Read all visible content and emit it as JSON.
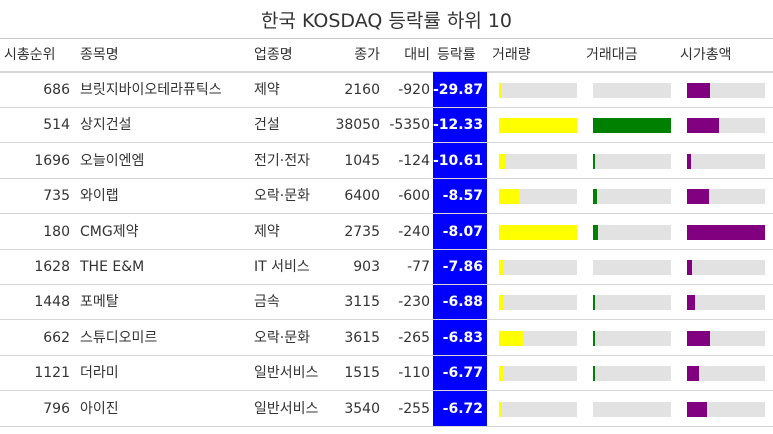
{
  "title": "한국 KOSDAQ 등락률 하위 10",
  "headers": {
    "rank": "시총순위",
    "name": "종목명",
    "sector": "업종명",
    "close": "종가",
    "change": "대비",
    "rate": "등락률",
    "volume": "거래량",
    "trade_value": "거래대금",
    "market_cap": "시가총액"
  },
  "colors": {
    "rate_bg": "#0000ff",
    "volume": "#ffff00",
    "trade_value": "#008000",
    "market_cap": "#800080",
    "track": "#e2e2e2"
  },
  "chart_data": {
    "type": "table",
    "columns": [
      "시총순위",
      "종목명",
      "업종명",
      "종가",
      "대비",
      "등락률",
      "거래량",
      "거래대금",
      "시가총액"
    ],
    "rows": [
      {
        "rank": "686",
        "name": "브릿지바이오테라퓨틱스",
        "sector": "제약",
        "close": "2160",
        "change": "-920",
        "rate": "-29.87",
        "volume": 0.03,
        "trade_value": 0.0,
        "market_cap": 0.29
      },
      {
        "rank": "514",
        "name": "상지건설",
        "sector": "건설",
        "close": "38050",
        "change": "-5350",
        "rate": "-12.33",
        "volume": 1.0,
        "trade_value": 1.0,
        "market_cap": 0.41
      },
      {
        "rank": "1696",
        "name": "오늘이엔엠",
        "sector": "전기·전자",
        "close": "1045",
        "change": "-124",
        "rate": "-10.61",
        "volume": 0.09,
        "trade_value": 0.02,
        "market_cap": 0.05
      },
      {
        "rank": "735",
        "name": "와이랩",
        "sector": "오락·문화",
        "close": "6400",
        "change": "-600",
        "rate": "-8.57",
        "volume": 0.27,
        "trade_value": 0.05,
        "market_cap": 0.28
      },
      {
        "rank": "180",
        "name": "CMG제약",
        "sector": "제약",
        "close": "2735",
        "change": "-240",
        "rate": "-8.07",
        "volume": 1.0,
        "trade_value": 0.07,
        "market_cap": 1.0
      },
      {
        "rank": "1628",
        "name": "THE E&M",
        "sector": "IT 서비스",
        "close": "903",
        "change": "-77",
        "rate": "-7.86",
        "volume": 0.05,
        "trade_value": 0.0,
        "market_cap": 0.06
      },
      {
        "rank": "1448",
        "name": "포메탈",
        "sector": "금속",
        "close": "3115",
        "change": "-230",
        "rate": "-6.88",
        "volume": 0.06,
        "trade_value": 0.01,
        "market_cap": 0.1
      },
      {
        "rank": "662",
        "name": "스튜디오미르",
        "sector": "오락·문화",
        "close": "3615",
        "change": "-265",
        "rate": "-6.83",
        "volume": 0.31,
        "trade_value": 0.03,
        "market_cap": 0.3
      },
      {
        "rank": "1121",
        "name": "더라미",
        "sector": "일반서비스",
        "close": "1515",
        "change": "-110",
        "rate": "-6.77",
        "volume": 0.05,
        "trade_value": 0.01,
        "market_cap": 0.16
      },
      {
        "rank": "796",
        "name": "아이진",
        "sector": "일반서비스",
        "close": "3540",
        "change": "-255",
        "rate": "-6.72",
        "volume": 0.02,
        "trade_value": 0.0,
        "market_cap": 0.25
      }
    ]
  }
}
